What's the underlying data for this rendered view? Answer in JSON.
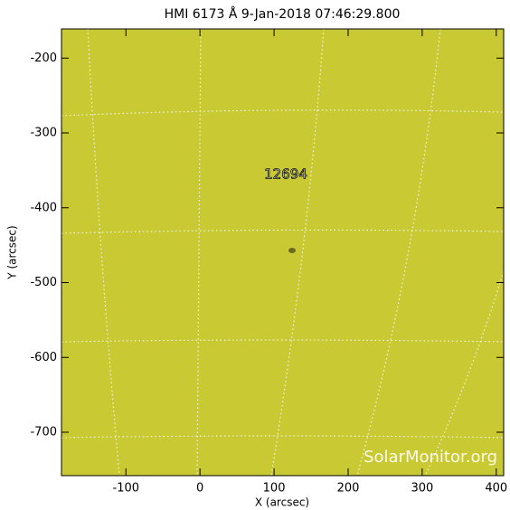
{
  "chart_data": {
    "type": "image",
    "title": "HMI 6173 Å  9-Jan-2018 07:46:29.800",
    "xlabel": "X (arcsec)",
    "ylabel": "Y (arcsec)",
    "xlim": [
      -187,
      410
    ],
    "ylim": [
      -758,
      -161
    ],
    "xticks": [
      -100,
      0,
      100,
      200,
      300,
      400
    ],
    "yticks": [
      -200,
      -300,
      -400,
      -500,
      -600,
      -700
    ],
    "annotation": "12694",
    "watermark": "SolarMonitor.org",
    "color": "#c9c934"
  }
}
